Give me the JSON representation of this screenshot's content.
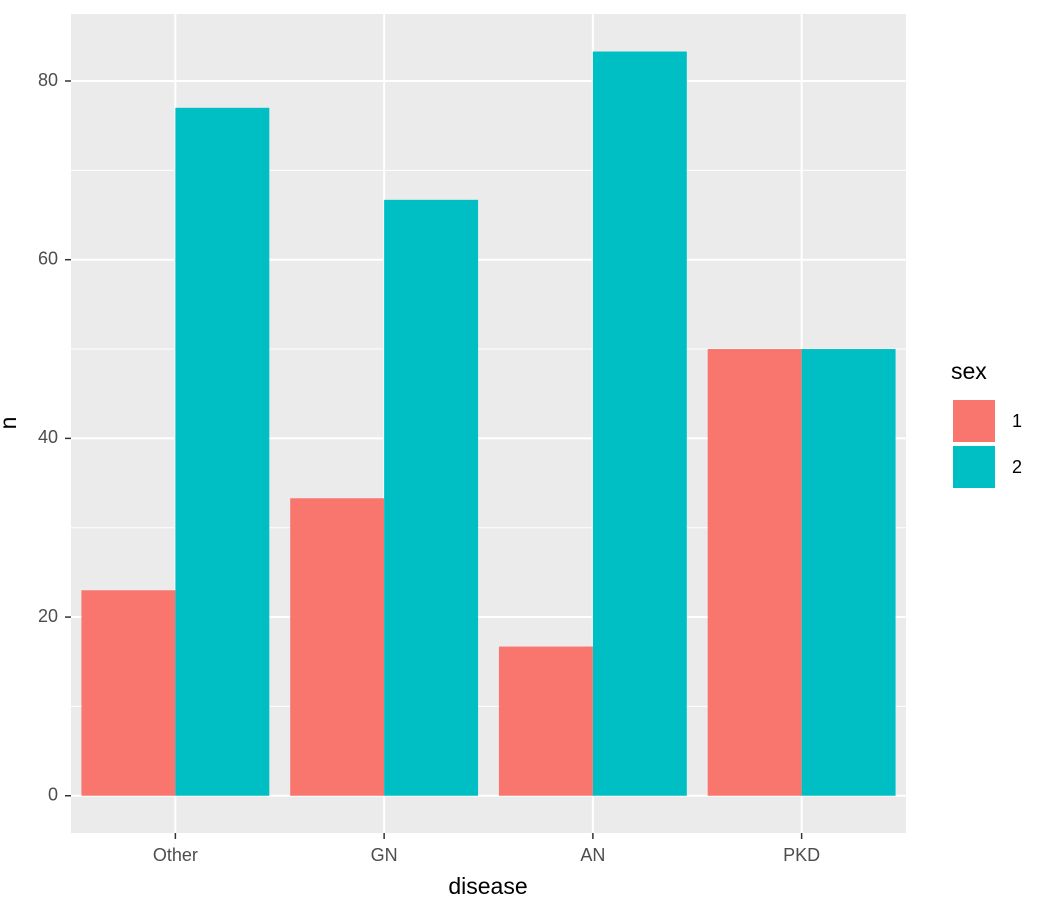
{
  "chart_data": {
    "type": "bar",
    "x_label": "disease",
    "y_label": "n",
    "categories": [
      "Other",
      "GN",
      "AN",
      "PKD"
    ],
    "series": [
      {
        "name": "1",
        "color": "#f8766d",
        "values": [
          23,
          33.3,
          16.7,
          50
        ]
      },
      {
        "name": "2",
        "color": "#00bfc4",
        "values": [
          77,
          66.7,
          83.3,
          50
        ]
      }
    ],
    "legend_title": "sex",
    "legend_position": "right",
    "ylim": [
      -4.17,
      87.5
    ],
    "yticks": [
      0,
      20,
      40,
      60,
      80
    ],
    "grid": true,
    "minor_grid": true
  }
}
